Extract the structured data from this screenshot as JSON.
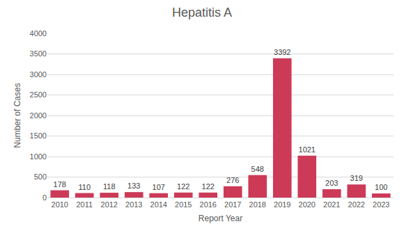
{
  "chart_data": {
    "type": "bar",
    "title": "Hepatitis A",
    "x_label": "Report Year",
    "y_label": "Number of Cases",
    "categories": [
      "2010",
      "2011",
      "2012",
      "2013",
      "2014",
      "2015",
      "2016",
      "2017",
      "2018",
      "2019",
      "2020",
      "2021",
      "2022",
      "2023"
    ],
    "values": [
      178,
      110,
      118,
      133,
      107,
      122,
      122,
      276,
      548,
      3392,
      1021,
      203,
      319,
      100
    ],
    "color": "#cc3a57",
    "ylim": [
      0,
      4000
    ],
    "yticks": [
      0,
      500,
      1000,
      1500,
      2000,
      2500,
      3000,
      3500,
      4000
    ],
    "grid": true,
    "data_labels": true
  }
}
